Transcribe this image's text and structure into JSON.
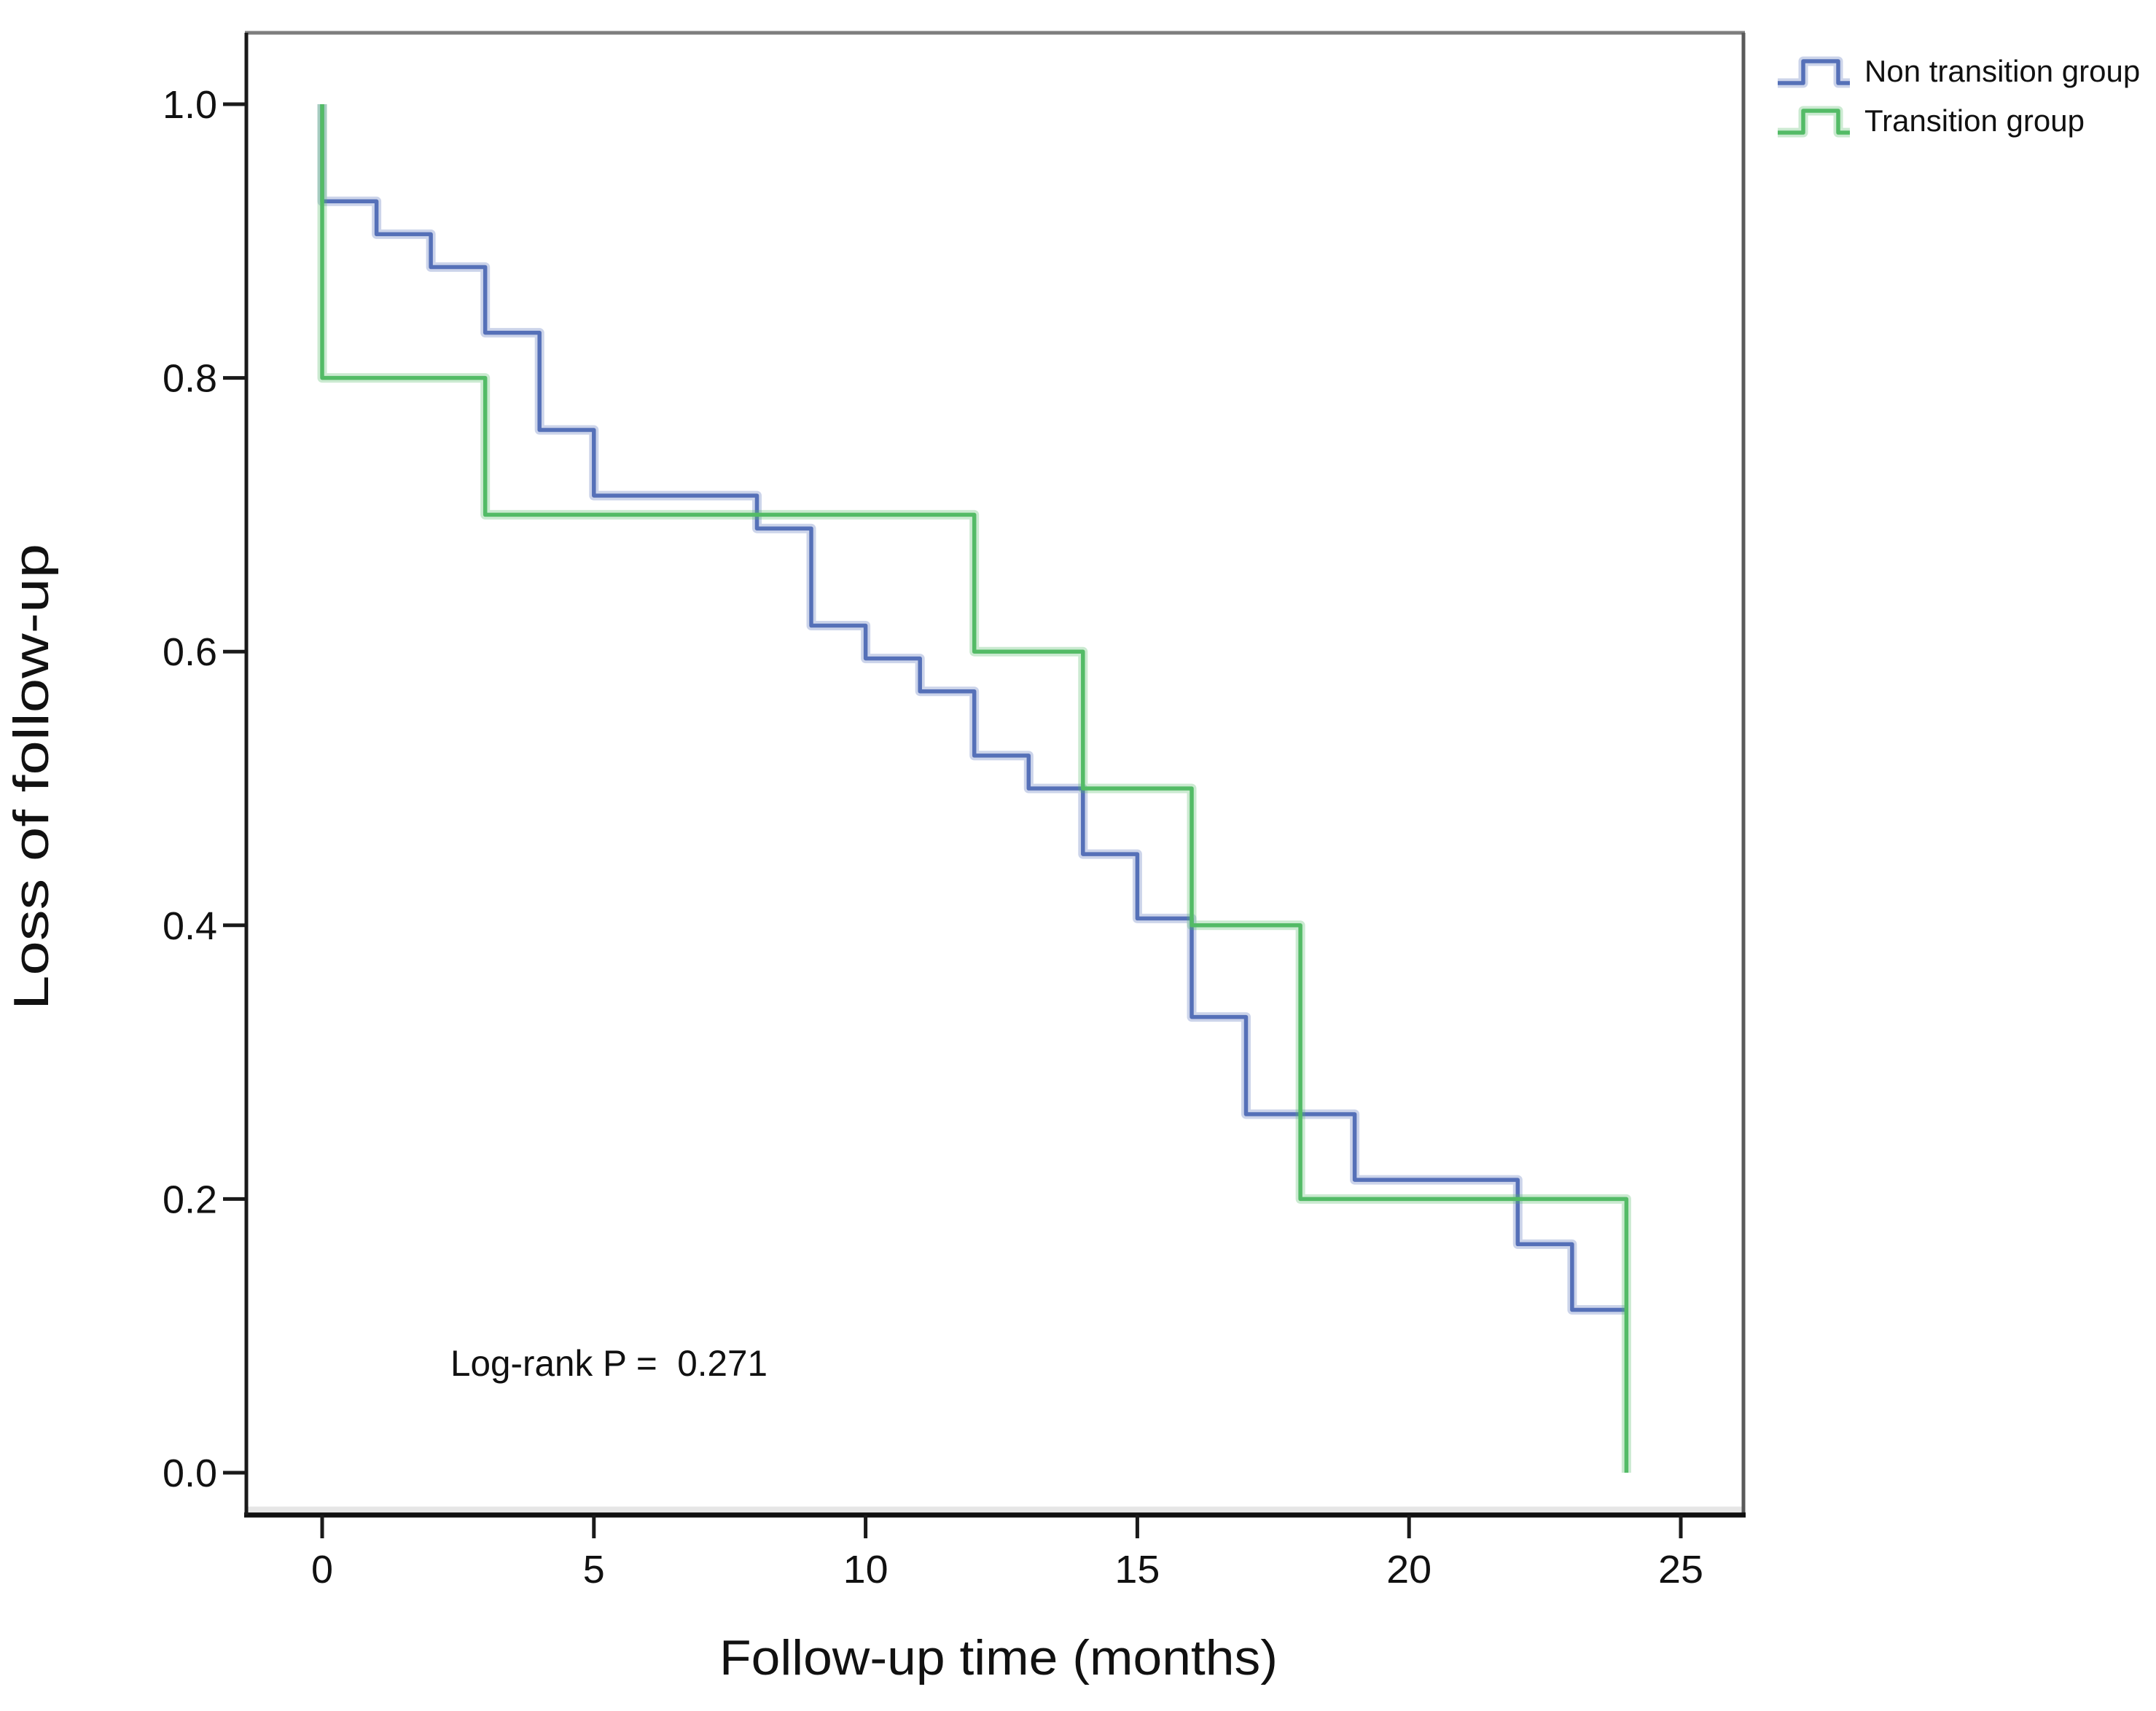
{
  "chart_data": {
    "type": "line",
    "subtype": "kaplan-meier-step-survival",
    "title": "",
    "xlabel": "Follow-up time (months)",
    "ylabel": "Loss of follow-up",
    "x_ticks": [
      0,
      5,
      10,
      15,
      20,
      25
    ],
    "y_ticks": [
      {
        "value": 1.0,
        "label": "1.0"
      },
      {
        "value": 0.8,
        "label": "0.8"
      },
      {
        "value": 0.6,
        "label": "0.6"
      },
      {
        "value": 0.4,
        "label": "0.4"
      },
      {
        "value": 0.2,
        "label": "0.2"
      },
      {
        "value": 0.0,
        "label": "0.0"
      }
    ],
    "xlim": [
      -1.4,
      26.4
    ],
    "ylim": [
      -0.031,
      1.052
    ],
    "grid": false,
    "legend_position": "top-right-outside",
    "annotation": {
      "text": "Log-rank P =  0.271",
      "x_month": 2.4,
      "y_value": 0.07
    },
    "frame_colors": {
      "top": "#7e7e7e",
      "right": "#5a5a5a",
      "bottom": "#101010",
      "left": "#1a1a1a"
    },
    "series": [
      {
        "name": "Non transition group",
        "color": "#5570b8",
        "steps": [
          [
            0,
            1.0
          ],
          [
            0,
            0.929
          ],
          [
            1,
            0.905
          ],
          [
            2,
            0.881
          ],
          [
            3,
            0.833
          ],
          [
            4,
            0.762
          ],
          [
            5,
            0.714
          ],
          [
            8,
            0.69
          ],
          [
            9,
            0.619
          ],
          [
            10,
            0.595
          ],
          [
            11,
            0.571
          ],
          [
            12,
            0.524
          ],
          [
            13,
            0.5
          ],
          [
            14,
            0.452
          ],
          [
            15,
            0.405
          ],
          [
            16,
            0.333
          ],
          [
            17,
            0.262
          ],
          [
            19,
            0.214
          ],
          [
            22,
            0.167
          ],
          [
            23,
            0.119
          ],
          [
            24,
            0.119
          ]
        ]
      },
      {
        "name": "Transition group",
        "color": "#53bb66",
        "steps": [
          [
            0,
            1.0
          ],
          [
            0,
            0.8
          ],
          [
            3,
            0.7
          ],
          [
            12,
            0.6
          ],
          [
            14,
            0.5
          ],
          [
            16,
            0.4
          ],
          [
            18,
            0.2
          ],
          [
            24,
            0.2
          ],
          [
            24,
            0.0
          ]
        ]
      }
    ]
  }
}
